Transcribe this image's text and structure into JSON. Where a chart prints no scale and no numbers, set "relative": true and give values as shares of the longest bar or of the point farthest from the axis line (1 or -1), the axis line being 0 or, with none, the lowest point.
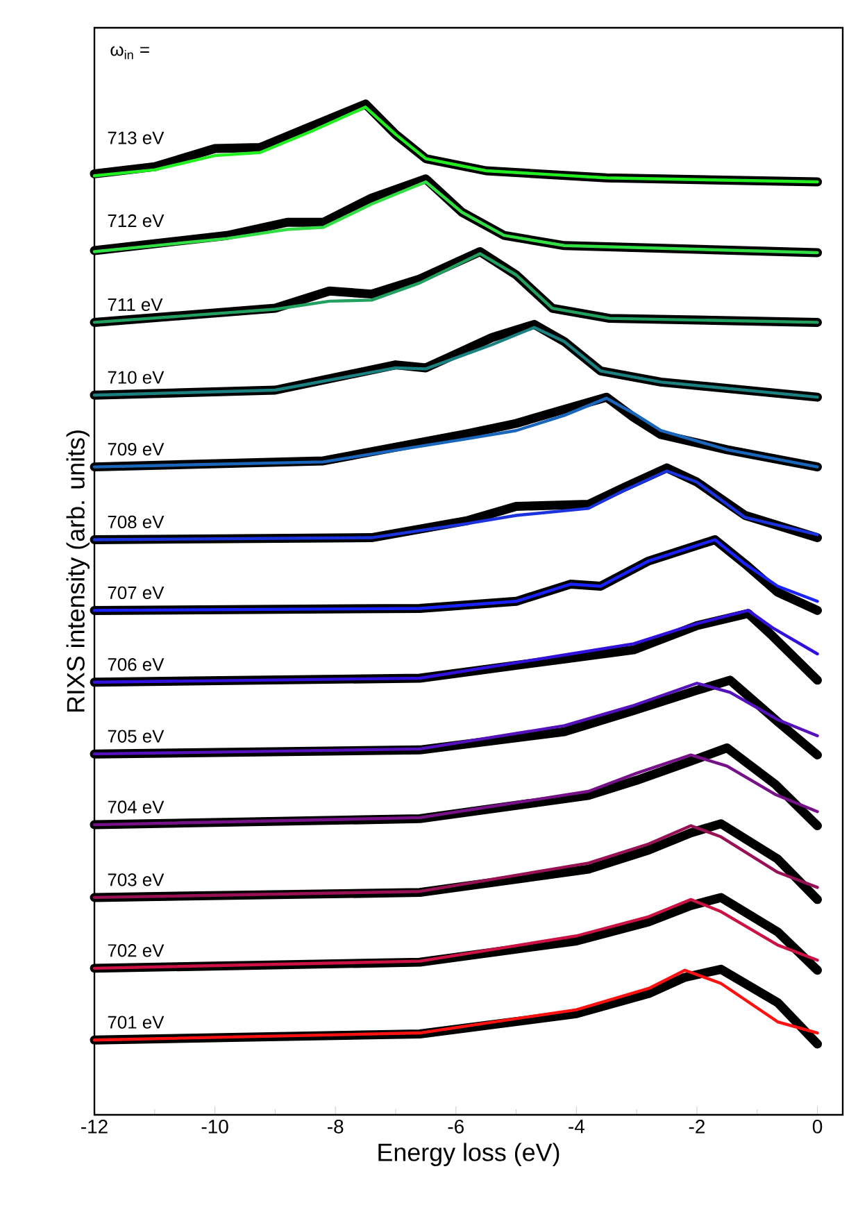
{
  "chart_data": {
    "type": "line",
    "relative": true,
    "xlabel": "Energy loss (eV)",
    "ylabel": "RIXS intensity (arb. units)",
    "xlim": [
      -12,
      0.42
    ],
    "xticks": [
      -12,
      -10,
      -8,
      -6,
      -4,
      -2,
      0
    ],
    "tick_labels": "x",
    "annotations": [
      "ω$_{in}$ ="
    ],
    "series": [
      {
        "color": "#000000",
        "x": [
          -12,
          -11,
          -10,
          -9.25,
          -8.4,
          -7.5,
          -7,
          -6.5,
          -5.5,
          -3.5,
          0
        ],
        "values": [
          0.931,
          0.938,
          0.956,
          0.957,
          0.978,
          1.0,
          0.97,
          0.946,
          0.934,
          0.927,
          0.923
        ]
      },
      {
        "name": "713 eV",
        "color": "#22ee22",
        "x": [
          -12,
          -11,
          -10,
          -9.25,
          -8.4,
          -7.5,
          -7,
          -6.5,
          -5.5,
          -3.5,
          0
        ],
        "values": [
          0.929,
          0.935,
          0.949,
          0.952,
          0.973,
          0.997,
          0.97,
          0.946,
          0.934,
          0.927,
          0.923
        ]
      },
      {
        "color": "#000000",
        "x": [
          -12,
          -9.8,
          -8.8,
          -8.2,
          -7.4,
          -6.5,
          -5.9,
          -5.2,
          -4.2,
          0
        ],
        "values": [
          0.855,
          0.87,
          0.883,
          0.883,
          0.907,
          0.926,
          0.893,
          0.87,
          0.86,
          0.853
        ]
      },
      {
        "name": "712 eV",
        "color": "#33dd44",
        "x": [
          -12,
          -9.8,
          -8.8,
          -8.2,
          -7.4,
          -6.5,
          -5.9,
          -5.2,
          -4.2,
          0
        ],
        "values": [
          0.854,
          0.867,
          0.876,
          0.878,
          0.901,
          0.923,
          0.893,
          0.87,
          0.86,
          0.853
        ]
      },
      {
        "color": "#000000",
        "x": [
          -12,
          -9,
          -8.1,
          -7.4,
          -6.6,
          -5.6,
          -5,
          -4.4,
          -3.45,
          0
        ],
        "values": [
          0.784,
          0.798,
          0.815,
          0.812,
          0.827,
          0.854,
          0.831,
          0.798,
          0.788,
          0.784
        ]
      },
      {
        "name": "711 eV",
        "color": "#22a060",
        "x": [
          -12,
          -9,
          -8.1,
          -7.4,
          -6.6,
          -5.6,
          -5,
          -4.4,
          -3.45,
          0
        ],
        "values": [
          0.784,
          0.797,
          0.805,
          0.806,
          0.823,
          0.852,
          0.831,
          0.798,
          0.788,
          0.784
        ]
      },
      {
        "color": "#000000",
        "x": [
          -12,
          -9,
          -7,
          -6.5,
          -5.4,
          -4.7,
          -4.2,
          -3.6,
          -2.6,
          0
        ],
        "values": [
          0.712,
          0.717,
          0.742,
          0.739,
          0.769,
          0.782,
          0.765,
          0.736,
          0.725,
          0.71
        ]
      },
      {
        "name": "710 eV",
        "color": "#1a8080",
        "x": [
          -12,
          -9,
          -7,
          -6.5,
          -5.4,
          -4.7,
          -4.2,
          -3.6,
          -2.6,
          0
        ],
        "values": [
          0.712,
          0.717,
          0.739,
          0.738,
          0.762,
          0.779,
          0.765,
          0.736,
          0.725,
          0.71
        ]
      },
      {
        "color": "#000000",
        "x": [
          -12,
          -8.2,
          -5.8,
          -5,
          -4.2,
          -3.5,
          -3.05,
          -2.6,
          -1.5,
          0
        ],
        "values": [
          0.641,
          0.647,
          0.674,
          0.684,
          0.698,
          0.71,
          0.69,
          0.673,
          0.658,
          0.641
        ]
      },
      {
        "name": "709 eV",
        "color": "#1a66bb",
        "x": [
          -12,
          -8.2,
          -5.8,
          -5,
          -4.2,
          -3.5,
          -3.05,
          -2.6,
          -1.5,
          0
        ],
        "values": [
          0.641,
          0.646,
          0.669,
          0.677,
          0.692,
          0.709,
          0.694,
          0.677,
          0.658,
          0.641
        ]
      },
      {
        "color": "#000000",
        "x": [
          -12,
          -7.4,
          -5.8,
          -5,
          -3.8,
          -3.2,
          -2.5,
          -2,
          -1.2,
          0
        ],
        "values": [
          0.569,
          0.571,
          0.588,
          0.602,
          0.604,
          0.621,
          0.64,
          0.626,
          0.593,
          0.571
        ]
      },
      {
        "name": "708 eV",
        "color": "#1a33dd",
        "x": [
          -12,
          -7.4,
          -5.8,
          -5,
          -3.8,
          -3.2,
          -2.5,
          -2,
          -1.2,
          0
        ],
        "values": [
          0.569,
          0.571,
          0.585,
          0.593,
          0.6,
          0.618,
          0.637,
          0.626,
          0.591,
          0.574
        ]
      },
      {
        "color": "#000000",
        "x": [
          -12,
          -6.6,
          -5,
          -4.1,
          -3.6,
          -2.8,
          -1.7,
          -1.2,
          -0.66,
          0
        ],
        "values": [
          0.499,
          0.501,
          0.508,
          0.525,
          0.523,
          0.548,
          0.569,
          0.545,
          0.517,
          0.499
        ]
      },
      {
        "name": "707 eV",
        "color": "#1a22ff",
        "x": [
          -12,
          -6.6,
          -5,
          -4.1,
          -3.6,
          -2.8,
          -1.7,
          -1.2,
          -0.66,
          0
        ],
        "values": [
          0.499,
          0.501,
          0.508,
          0.525,
          0.523,
          0.548,
          0.569,
          0.545,
          0.523,
          0.508
        ]
      },
      {
        "color": "#000000",
        "x": [
          -12,
          -6.6,
          -4.2,
          -3.05,
          -2,
          -1.15,
          -0.75,
          0
        ],
        "values": [
          0.428,
          0.432,
          0.451,
          0.46,
          0.484,
          0.496,
          0.474,
          0.43
        ]
      },
      {
        "name": "706 eV",
        "color": "#3311dd",
        "x": [
          -12,
          -6.6,
          -4.2,
          -3.05,
          -2,
          -1.15,
          -0.75,
          0
        ],
        "values": [
          0.428,
          0.432,
          0.455,
          0.466,
          0.486,
          0.499,
          0.482,
          0.456
        ]
      },
      {
        "color": "#000000",
        "x": [
          -12,
          -6.6,
          -4.2,
          -3.05,
          -2,
          -1.45,
          -0.66,
          0
        ],
        "values": [
          0.357,
          0.361,
          0.379,
          0.4,
          0.42,
          0.43,
          0.389,
          0.356
        ]
      },
      {
        "name": "705 eV",
        "color": "#5511bb",
        "x": [
          -12,
          -6.6,
          -4.2,
          -3.05,
          -2,
          -1.45,
          -0.66,
          0
        ],
        "values": [
          0.357,
          0.362,
          0.385,
          0.405,
          0.427,
          0.418,
          0.391,
          0.375
        ]
      },
      {
        "color": "#000000",
        "x": [
          -12,
          -6.6,
          -3.8,
          -3,
          -2.1,
          -1.5,
          -0.7,
          0
        ],
        "values": [
          0.287,
          0.293,
          0.316,
          0.331,
          0.35,
          0.363,
          0.327,
          0.286
        ]
      },
      {
        "name": "704 eV",
        "color": "#771188",
        "x": [
          -12,
          -6.6,
          -3.8,
          -3,
          -2.1,
          -1.5,
          -0.7,
          0
        ],
        "values": [
          0.287,
          0.294,
          0.32,
          0.338,
          0.356,
          0.345,
          0.317,
          0.3
        ]
      },
      {
        "color": "#000000",
        "x": [
          -12,
          -6.6,
          -3.8,
          -2.8,
          -2.1,
          -1.6,
          -0.66,
          0
        ],
        "values": [
          0.215,
          0.22,
          0.243,
          0.262,
          0.279,
          0.288,
          0.253,
          0.213
        ]
      },
      {
        "name": "703 eV",
        "color": "#991155",
        "x": [
          -12,
          -6.6,
          -3.8,
          -2.8,
          -2.1,
          -1.6,
          -0.66,
          0
        ],
        "values": [
          0.215,
          0.221,
          0.249,
          0.268,
          0.286,
          0.275,
          0.24,
          0.225
        ]
      },
      {
        "color": "#000000",
        "x": [
          -12,
          -6.6,
          -4,
          -2.8,
          -2.1,
          -1.6,
          -0.66,
          0
        ],
        "values": [
          0.145,
          0.151,
          0.172,
          0.191,
          0.207,
          0.215,
          0.181,
          0.143
        ]
      },
      {
        "name": "702 eV",
        "color": "#cc1144",
        "x": [
          -12,
          -6.6,
          -4,
          -2.8,
          -2.1,
          -1.6,
          -0.66,
          0
        ],
        "values": [
          0.145,
          0.152,
          0.177,
          0.196,
          0.213,
          0.201,
          0.168,
          0.153
        ]
      },
      {
        "color": "#000000",
        "x": [
          -12,
          -6.6,
          -4,
          -2.8,
          -2.2,
          -1.6,
          -0.66,
          0
        ],
        "values": [
          0.074,
          0.08,
          0.1,
          0.12,
          0.136,
          0.144,
          0.111,
          0.07
        ]
      },
      {
        "name": "701 eV",
        "color": "#ff1111",
        "x": [
          -12,
          -6.6,
          -4,
          -2.8,
          -2.2,
          -1.6,
          -0.66,
          0
        ],
        "values": [
          0.074,
          0.081,
          0.104,
          0.125,
          0.143,
          0.13,
          0.092,
          0.081
        ]
      }
    ]
  }
}
